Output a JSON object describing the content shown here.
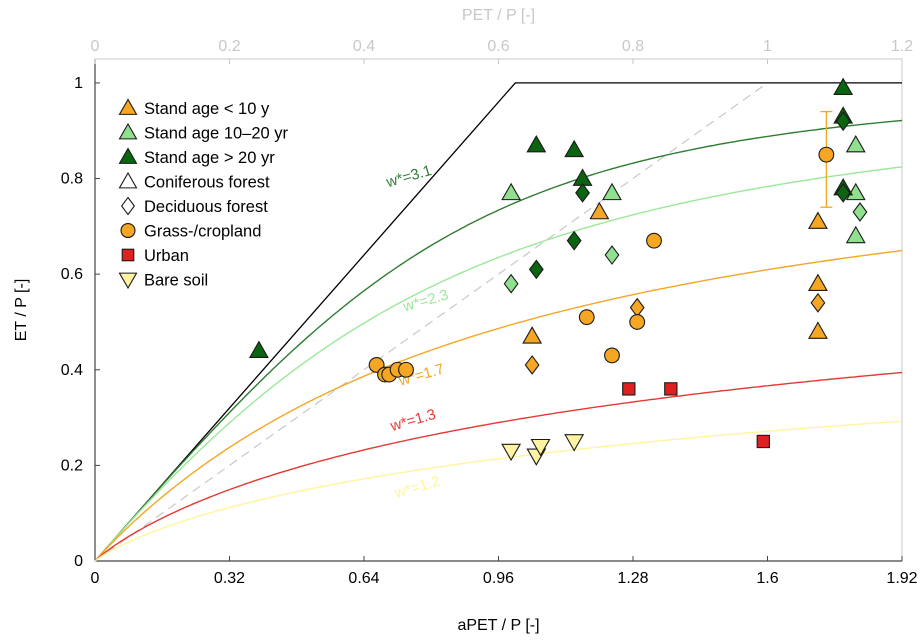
{
  "chart_data": {
    "type": "scatter",
    "xlabel": "aPET / P [-]",
    "ylabel": "ET / P [-]",
    "x2label": "PET / P [-]",
    "xlim": [
      0,
      1.92
    ],
    "ylim": [
      0,
      1.05
    ],
    "x2lim": [
      0,
      1.2
    ],
    "x_ticks": [
      0,
      0.32,
      0.64,
      0.96,
      1.28,
      1.6,
      1.92
    ],
    "x_tick_labels": [
      "0",
      "0.32",
      "0.64",
      "0.96",
      "1.28",
      "1.6",
      "1.92"
    ],
    "x2_ticks": [
      0,
      0.2,
      0.4,
      0.6,
      0.8,
      1,
      1.2
    ],
    "x2_tick_labels": [
      "0",
      "0.2",
      "0.4",
      "0.6",
      "0.8",
      "1",
      "1.2"
    ],
    "y_ticks": [
      0,
      0.2,
      0.4,
      0.6,
      0.8,
      1
    ],
    "y_tick_labels": [
      "0",
      "0.2",
      "0.4",
      "0.6",
      "0.8",
      "1"
    ],
    "grid": false,
    "legend_position": "top-left",
    "legend": [
      {
        "label": "Stand age < 10 y",
        "marker": "triangle-up",
        "color": "#f5a623"
      },
      {
        "label": "Stand age 10–20 yr",
        "marker": "triangle-up",
        "color": "#90e090"
      },
      {
        "label": "Stand age > 20 yr",
        "marker": "triangle-up",
        "color": "#0a6410"
      },
      {
        "label": "Coniferous forest",
        "marker": "triangle-up",
        "color": "#ffffff"
      },
      {
        "label": "Deciduous forest",
        "marker": "diamond",
        "color": "#ffffff"
      },
      {
        "label": "Grass-/cropland",
        "marker": "circle",
        "color": "#f5a623"
      },
      {
        "label": "Urban",
        "marker": "square",
        "color": "#e02020"
      },
      {
        "label": "Bare soil",
        "marker": "triangle-down",
        "color": "#fff2a0"
      }
    ],
    "curves": [
      {
        "label": "w*=3.1",
        "w": 3.1,
        "color": "#2e7d32",
        "label_at": [
          0.75,
          0.795
        ]
      },
      {
        "label": "w*=2.3",
        "w": 2.3,
        "color": "#9be89b",
        "label_at": [
          0.79,
          0.535
        ]
      },
      {
        "label": "w*=1.7",
        "w": 1.7,
        "color": "#f5a623",
        "label_at": [
          0.78,
          0.38
        ]
      },
      {
        "label": "w*=1.3",
        "w": 1.3,
        "color": "#e53935",
        "label_at": [
          0.76,
          0.285
        ]
      },
      {
        "label": "w*=1.2",
        "w": 1.2,
        "color": "#fff59d",
        "label_at": [
          0.77,
          0.145
        ]
      }
    ],
    "energy_limit": {
      "color": "#000000",
      "points": [
        [
          0,
          0
        ],
        [
          1.0,
          1.0
        ],
        [
          1.92,
          1.0
        ]
      ]
    },
    "one_to_one": {
      "color": "#cccccc",
      "dash": true,
      "points": [
        [
          0,
          0
        ],
        [
          1.6,
          1.0
        ]
      ]
    },
    "series": [
      {
        "name": "Stand age < 10 y, Coniferous forest",
        "marker": "triangle-up",
        "color": "#f5a623",
        "points": [
          [
            1.04,
            0.47
          ],
          [
            1.2,
            0.73
          ],
          [
            1.72,
            0.71
          ],
          [
            1.72,
            0.58
          ],
          [
            1.72,
            0.48
          ]
        ]
      },
      {
        "name": "Stand age < 10 y, Deciduous forest",
        "marker": "diamond",
        "color": "#f5a623",
        "points": [
          [
            1.04,
            0.41
          ],
          [
            1.29,
            0.53
          ],
          [
            1.72,
            0.54
          ]
        ]
      },
      {
        "name": "Stand age 10–20 yr, Coniferous forest",
        "marker": "triangle-up",
        "color": "#90e090",
        "points": [
          [
            0.99,
            0.77
          ],
          [
            1.23,
            0.77
          ],
          [
            1.81,
            0.87
          ],
          [
            1.81,
            0.77
          ],
          [
            1.81,
            0.68
          ]
        ]
      },
      {
        "name": "Stand age 10–20 yr, Deciduous forest",
        "marker": "diamond",
        "color": "#90e090",
        "points": [
          [
            0.99,
            0.58
          ],
          [
            1.23,
            0.64
          ],
          [
            1.82,
            0.73
          ]
        ]
      },
      {
        "name": "Stand age > 20 yr, Coniferous forest",
        "marker": "triangle-up",
        "color": "#0a6410",
        "points": [
          [
            0.39,
            0.44
          ],
          [
            1.05,
            0.87
          ],
          [
            1.14,
            0.86
          ],
          [
            1.16,
            0.8
          ],
          [
            1.78,
            0.99
          ],
          [
            1.78,
            0.93
          ],
          [
            1.78,
            0.78
          ]
        ]
      },
      {
        "name": "Stand age > 20 yr, Deciduous forest",
        "marker": "diamond",
        "color": "#0a6410",
        "points": [
          [
            1.05,
            0.61
          ],
          [
            1.14,
            0.67
          ],
          [
            1.16,
            0.77
          ],
          [
            1.78,
            0.92
          ],
          [
            1.78,
            0.77
          ]
        ]
      },
      {
        "name": "Grass-/cropland",
        "marker": "circle",
        "color": "#f5a623",
        "points": [
          [
            0.67,
            0.41
          ],
          [
            0.69,
            0.39
          ],
          [
            0.7,
            0.39
          ],
          [
            0.72,
            0.4
          ],
          [
            0.74,
            0.4
          ],
          [
            1.17,
            0.51
          ],
          [
            1.23,
            0.43
          ],
          [
            1.29,
            0.5
          ],
          [
            1.33,
            0.67
          ],
          [
            1.74,
            0.85
          ]
        ]
      },
      {
        "name": "Urban",
        "marker": "square",
        "color": "#e02020",
        "points": [
          [
            1.27,
            0.36
          ],
          [
            1.37,
            0.36
          ],
          [
            1.59,
            0.25
          ]
        ]
      },
      {
        "name": "Bare soil",
        "marker": "triangle-down",
        "color": "#fff2a0",
        "points": [
          [
            0.99,
            0.23
          ],
          [
            1.05,
            0.22
          ],
          [
            1.06,
            0.24
          ],
          [
            1.14,
            0.25
          ]
        ]
      }
    ],
    "error_bars": [
      {
        "x": 1.74,
        "y": 0.85,
        "low": 0.74,
        "high": 0.94,
        "color": "#f5a623"
      }
    ]
  }
}
